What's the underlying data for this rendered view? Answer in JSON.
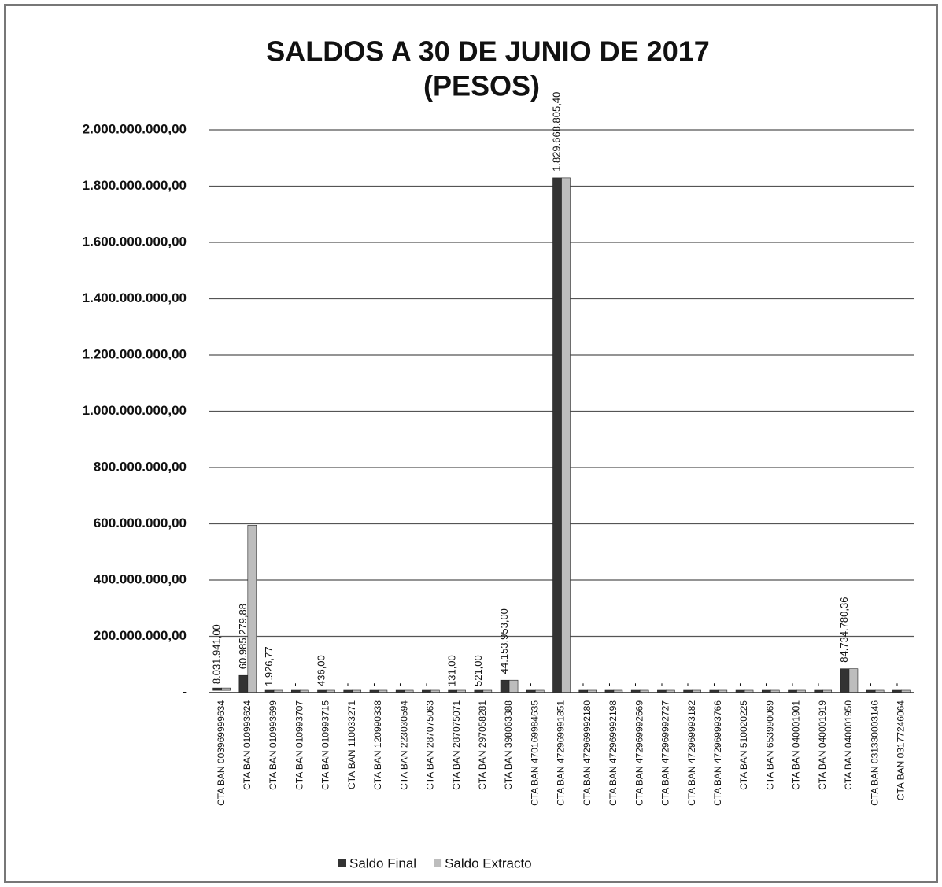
{
  "chart_data": {
    "type": "bar",
    "title": "SALDOS A 30 DE JUNIO DE 2017",
    "subtitle": "(PESOS)",
    "categories": [
      "CTA BAN 003969999634",
      "CTA BAN 010993624",
      "CTA BAN 010993699",
      "CTA BAN 010993707",
      "CTA BAN 010993715",
      "CTA BAN 110033271",
      "CTA BAN 120990338",
      "CTA BAN 223030594",
      "CTA BAN 287075063",
      "CTA BAN 287075071",
      "CTA BAN 297058281",
      "CTA BAN 398063388",
      "CTA BAN 470169984635",
      "CTA BAN 472969991851",
      "CTA BAN 472969992180",
      "CTA BAN 472969992198",
      "CTA BAN 472969992669",
      "CTA BAN 472969992727",
      "CTA BAN 472969993182",
      "CTA BAN 472969993766",
      "CTA BAN 510020225",
      "CTA BAN 653990069",
      "CTA BAN 040001901",
      "CTA BAN 040001919",
      "CTA BAN 040001950",
      "CTA BAN 031330003146",
      "CTA BAN 03177246064"
    ],
    "series": [
      {
        "name": "Saldo Final",
        "color": "#333333",
        "values": [
          8031941,
          60985279.88,
          1926.77,
          0,
          436,
          0,
          0,
          0,
          0,
          131,
          521,
          44153953,
          0,
          1829668805.4,
          0,
          0,
          0,
          0,
          0,
          0,
          0,
          0,
          0,
          0,
          84734780.36,
          0,
          0
        ],
        "value_labels": [
          "8.031.941,00",
          "60.985.279,88",
          "1.926,77",
          "-",
          "436,00",
          "-",
          "-",
          "-",
          "-",
          "131,00",
          "521,00",
          "44.153.953,00",
          "-",
          "1.829.668.805,40",
          "-",
          "-",
          "-",
          "-",
          "-",
          "-",
          "-",
          "-",
          "-",
          "-",
          "84.734.780,36",
          "-",
          "-"
        ]
      },
      {
        "name": "Saldo Extracto",
        "color": "#bdbdbd",
        "values": [
          8031941,
          595000000,
          1926.77,
          0,
          436,
          0,
          0,
          0,
          0,
          131,
          521,
          44153953,
          0,
          1829668805.4,
          0,
          0,
          0,
          0,
          0,
          0,
          0,
          0,
          0,
          0,
          84734780.36,
          0,
          0
        ]
      }
    ],
    "ylim": [
      0,
      2000000000
    ],
    "yticks": [
      {
        "value": 0,
        "label": "-"
      },
      {
        "value": 200000000,
        "label": "200.000.000,00"
      },
      {
        "value": 400000000,
        "label": "400.000.000,00"
      },
      {
        "value": 600000000,
        "label": "600.000.000,00"
      },
      {
        "value": 800000000,
        "label": "800.000.000,00"
      },
      {
        "value": 1000000000,
        "label": "1.000.000.000,00"
      },
      {
        "value": 1200000000,
        "label": "1.200.000.000,00"
      },
      {
        "value": 1400000000,
        "label": "1.400.000.000,00"
      },
      {
        "value": 1600000000,
        "label": "1.600.000.000,00"
      },
      {
        "value": 1800000000,
        "label": "1.800.000.000,00"
      },
      {
        "value": 2000000000,
        "label": "2.000.000.000,00"
      }
    ],
    "grid": true,
    "legend": "bottom"
  }
}
